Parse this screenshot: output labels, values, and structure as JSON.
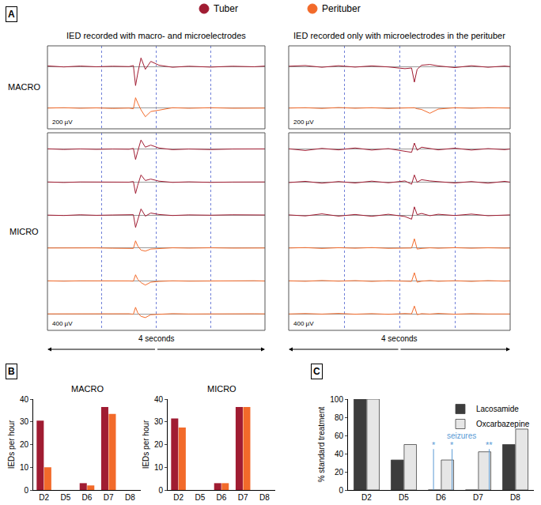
{
  "chart_data": [
    {
      "type": "line",
      "legend": "top",
      "grid": true,
      "tick_labels": false,
      "xlim": [
        0,
        4
      ],
      "xticks": [
        0,
        1,
        2,
        3,
        4
      ],
      "row_labels": [
        "MACRO",
        "MICRO"
      ],
      "columns": [
        {
          "title": "IED recorded with macro- and microelectrodes",
          "x_label": "4 seconds",
          "rows": [
            {
              "scale_label": "200 µV",
              "ylim": [
                -600,
                600
              ],
              "x": [
                0,
                0.3,
                0.6,
                0.9,
                1.2,
                1.5,
                1.58,
                1.62,
                1.66,
                1.72,
                1.8,
                1.9,
                2.05,
                2.3,
                2.6,
                3.0,
                3.4,
                3.8,
                4
              ],
              "series": [
                {
                  "name": "Tuber",
                  "color": "#a01c32",
                  "values": [
                    20,
                    -10,
                    15,
                    -5,
                    10,
                    0,
                    30,
                    -550,
                    -200,
                    250,
                    -80,
                    150,
                    40,
                    -20,
                    10,
                    -15,
                    10,
                    -5,
                    15
                  ]
                },
                {
                  "name": "Perituber",
                  "color": "#f26a2a",
                  "values": [
                    0,
                    10,
                    -5,
                    5,
                    -10,
                    0,
                    -20,
                    300,
                    150,
                    -50,
                    -250,
                    -100,
                    -60,
                    10,
                    -5,
                    10,
                    -5,
                    5,
                    0
                  ]
                }
              ]
            },
            {
              "scale_label": "400 µV",
              "ylim": [
                -800,
                800
              ],
              "x": [
                0,
                0.3,
                0.6,
                0.9,
                1.2,
                1.5,
                1.58,
                1.62,
                1.66,
                1.72,
                1.8,
                1.9,
                2.05,
                2.3,
                2.6,
                3.0,
                3.4,
                3.8,
                4
              ],
              "series": [
                {
                  "name": "Tuber",
                  "color": "#a01c32",
                  "values": [
                    20,
                    -10,
                    15,
                    -5,
                    10,
                    0,
                    40,
                    -500,
                    -100,
                    450,
                    100,
                    200,
                    60,
                    -20,
                    10,
                    -15,
                    10,
                    -5,
                    15
                  ]
                },
                {
                  "name": "Tuber",
                  "color": "#a01c32",
                  "values": [
                    10,
                    -15,
                    10,
                    5,
                    -10,
                    0,
                    30,
                    -550,
                    -150,
                    350,
                    80,
                    150,
                    50,
                    -10,
                    15,
                    -10,
                    5,
                    -10,
                    10
                  ]
                },
                {
                  "name": "Tuber",
                  "color": "#a01c32",
                  "values": [
                    0,
                    -20,
                    15,
                    -10,
                    5,
                    -5,
                    20,
                    -600,
                    -250,
                    300,
                    -50,
                    100,
                    30,
                    -20,
                    10,
                    -5,
                    15,
                    -10,
                    5
                  ]
                },
                {
                  "name": "Perituber",
                  "color": "#f26a2a",
                  "values": [
                    0,
                    10,
                    -5,
                    5,
                    -10,
                    0,
                    -20,
                    350,
                    100,
                    -100,
                    -150,
                    -50,
                    -30,
                    10,
                    -5,
                    10,
                    -5,
                    5,
                    0
                  ]
                },
                {
                  "name": "Perituber",
                  "color": "#f26a2a",
                  "values": [
                    5,
                    -10,
                    5,
                    10,
                    -5,
                    0,
                    -10,
                    300,
                    80,
                    -80,
                    -200,
                    -60,
                    -20,
                    5,
                    -10,
                    5,
                    0,
                    10,
                    -5
                  ]
                },
                {
                  "name": "Perituber",
                  "color": "#f26a2a",
                  "values": [
                    0,
                    5,
                    -10,
                    5,
                    0,
                    5,
                    -15,
                    320,
                    50,
                    -120,
                    -180,
                    -40,
                    -20,
                    10,
                    -5,
                    5,
                    -10,
                    5,
                    0
                  ]
                }
              ]
            }
          ]
        },
        {
          "title": "IED recorded only with microelectrodes in the perituber",
          "x_label": "4 seconds",
          "rows": [
            {
              "scale_label": "200 µV",
              "ylim": [
                -600,
                600
              ],
              "x": [
                0,
                0.3,
                0.6,
                0.9,
                1.2,
                1.5,
                1.8,
                2.1,
                2.22,
                2.27,
                2.32,
                2.4,
                2.55,
                2.7,
                3.0,
                3.3,
                3.6,
                3.9,
                4
              ],
              "series": [
                {
                  "name": "Tuber",
                  "color": "#a01c32",
                  "values": [
                    10,
                    30,
                    -20,
                    25,
                    -15,
                    20,
                    -10,
                    -60,
                    -40,
                    -450,
                    -80,
                    40,
                    60,
                    20,
                    -30,
                    25,
                    -20,
                    15,
                    0
                  ]
                },
                {
                  "name": "Perituber",
                  "color": "#f26a2a",
                  "values": [
                    0,
                    10,
                    -10,
                    15,
                    -5,
                    10,
                    -10,
                    5,
                    0,
                    10,
                    -20,
                    -40,
                    -150,
                    -30,
                    10,
                    -5,
                    10,
                    -5,
                    0
                  ]
                }
              ]
            },
            {
              "scale_label": "400 µV",
              "ylim": [
                -800,
                800
              ],
              "x": [
                0,
                0.3,
                0.6,
                0.9,
                1.2,
                1.5,
                1.8,
                2.1,
                2.22,
                2.27,
                2.32,
                2.4,
                2.55,
                2.7,
                3.0,
                3.3,
                3.6,
                3.9,
                4
              ],
              "series": [
                {
                  "name": "Tuber",
                  "color": "#a01c32",
                  "values": [
                    20,
                    -60,
                    40,
                    -30,
                    60,
                    -40,
                    30,
                    -80,
                    -150,
                    300,
                    -50,
                    100,
                    40,
                    -30,
                    50,
                    -40,
                    30,
                    -20,
                    10
                  ]
                },
                {
                  "name": "Tuber",
                  "color": "#a01c32",
                  "values": [
                    -20,
                    40,
                    -50,
                    30,
                    -40,
                    50,
                    -30,
                    60,
                    -100,
                    350,
                    0,
                    120,
                    60,
                    20,
                    -40,
                    30,
                    -50,
                    40,
                    0
                  ]
                },
                {
                  "name": "Tuber",
                  "color": "#a01c32",
                  "values": [
                    10,
                    -40,
                    60,
                    -50,
                    30,
                    -60,
                    40,
                    -70,
                    -200,
                    400,
                    20,
                    80,
                    -30,
                    40,
                    -20,
                    50,
                    -30,
                    20,
                    10
                  ]
                },
                {
                  "name": "Perituber",
                  "color": "#f26a2a",
                  "values": [
                    0,
                    20,
                    -20,
                    15,
                    -10,
                    20,
                    -15,
                    10,
                    0,
                    450,
                    -50,
                    -20,
                    10,
                    -10,
                    15,
                    -10,
                    10,
                    -5,
                    0
                  ]
                },
                {
                  "name": "Perituber",
                  "color": "#f26a2a",
                  "values": [
                    5,
                    -15,
                    20,
                    -10,
                    15,
                    -20,
                    10,
                    -10,
                    -20,
                    400,
                    -60,
                    -10,
                    20,
                    -15,
                    10,
                    -20,
                    15,
                    -10,
                    5
                  ]
                },
                {
                  "name": "Perituber",
                  "color": "#f26a2a",
                  "values": [
                    -5,
                    15,
                    -10,
                    20,
                    -15,
                    10,
                    -20,
                    15,
                    0,
                    380,
                    -40,
                    10,
                    -10,
                    20,
                    -15,
                    10,
                    -5,
                    15,
                    -5
                  ]
                }
              ]
            }
          ]
        }
      ]
    },
    {
      "type": "bar",
      "title": "MACRO",
      "y_label": "IEDs per hour",
      "categories": [
        "D2",
        "D5",
        "D6",
        "D7",
        "D8"
      ],
      "ylim": [
        0,
        40
      ],
      "yticks": [
        0,
        10,
        20,
        30,
        40
      ],
      "grid": false,
      "series": [
        {
          "name": "Tuber",
          "color": "#a01c32",
          "values": [
            30.5,
            0,
            3,
            36.5,
            0
          ]
        },
        {
          "name": "Perituber",
          "color": "#f26a2a",
          "values": [
            10,
            0,
            2,
            33.5,
            0
          ]
        }
      ]
    },
    {
      "type": "bar",
      "title": "MICRO",
      "y_label": "IEDs per hour",
      "categories": [
        "D2",
        "D5",
        "D6",
        "D7",
        "D8"
      ],
      "ylim": [
        0,
        40
      ],
      "yticks": [
        0,
        10,
        20,
        30,
        40
      ],
      "grid": false,
      "series": [
        {
          "name": "Tuber",
          "color": "#a01c32",
          "values": [
            31.5,
            0,
            3,
            36.5,
            0
          ]
        },
        {
          "name": "Perituber",
          "color": "#f26a2a",
          "values": [
            27.5,
            0,
            3,
            36.5,
            0
          ]
        }
      ]
    },
    {
      "type": "bar",
      "y_label": "% standard treatment",
      "categories": [
        "D2",
        "D5",
        "D6",
        "D7",
        "D8"
      ],
      "ylim": [
        0,
        100
      ],
      "yticks": [
        0,
        20,
        40,
        60,
        80,
        100
      ],
      "grid": false,
      "legend": "upper right",
      "series": [
        {
          "name": "Lacosamide",
          "color": "#3c3c3c",
          "values": [
            100,
            33,
            0,
            0,
            50
          ]
        },
        {
          "name": "Oxcarbazepine",
          "color": "#e6e6e6",
          "values": [
            100,
            50,
            33,
            42,
            67
          ]
        }
      ],
      "annotations": {
        "text": "seizures",
        "color": "#5b9bd5",
        "events": [
          {
            "x": 1.8,
            "label": "*"
          },
          {
            "x": 2.3,
            "label": "*"
          },
          {
            "x": 3.3,
            "label": "**"
          }
        ]
      }
    }
  ],
  "panel_labels": [
    "A",
    "B",
    "C"
  ]
}
